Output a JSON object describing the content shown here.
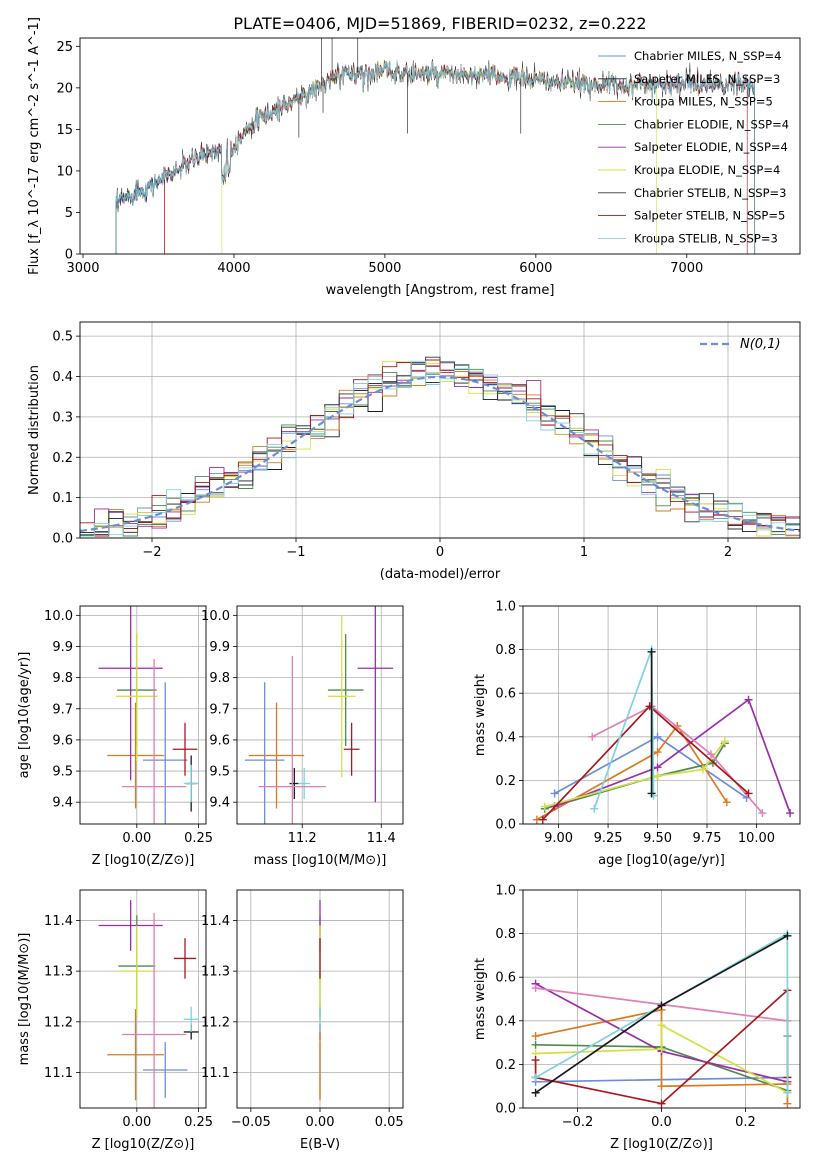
{
  "figure_title": "PLATE=0406, MJD=51869, FIBERID=0232, z=0.222",
  "chart_data": [
    {
      "type": "line",
      "id": "spectrum",
      "title": "PLATE=0406, MJD=51869, FIBERID=0232, z=0.222",
      "xlabel": "wavelength [Angstrom, rest frame]",
      "ylabel": "Flux [f_λ 10^-17 erg cm^-2 s^-1 A^-1]",
      "xlim": [
        2980,
        7750
      ],
      "ylim": [
        0,
        26
      ],
      "xticks": [
        3000,
        4000,
        5000,
        6000,
        7000
      ],
      "yticks": [
        0,
        5,
        10,
        15,
        20,
        25
      ],
      "grid": false,
      "legend_position": "top-right",
      "legend": [
        {
          "name": "Chabrier MILES, N_SSP=4",
          "color": "#6b8fd6"
        },
        {
          "name": "Salpeter MILES, N_SSP=3",
          "color": "#1a1a1a"
        },
        {
          "name": "Kroupa MILES, N_SSP=5",
          "color": "#d97b1e"
        },
        {
          "name": "Chabrier ELODIE, N_SSP=4",
          "color": "#4f8a4f"
        },
        {
          "name": "Salpeter ELODIE, N_SSP=4",
          "color": "#9a2ea8"
        },
        {
          "name": "Kroupa ELODIE, N_SSP=4",
          "color": "#d4e04a"
        },
        {
          "name": "Chabrier STELIB, N_SSP=3",
          "color": "#333333"
        },
        {
          "name": "Salpeter STELIB, N_SSP=5",
          "color": "#a8191e"
        },
        {
          "name": "Kroupa STELIB, N_SSP=3",
          "color": "#7fd3de"
        }
      ],
      "continuum": [
        [
          3220,
          6
        ],
        [
          3300,
          7
        ],
        [
          3400,
          7.8
        ],
        [
          3500,
          8.8
        ],
        [
          3600,
          9.8
        ],
        [
          3700,
          11
        ],
        [
          3800,
          12
        ],
        [
          3900,
          12.5
        ],
        [
          4000,
          13
        ],
        [
          4100,
          15.5
        ],
        [
          4200,
          16.5
        ],
        [
          4300,
          17.5
        ],
        [
          4400,
          18.5
        ],
        [
          4500,
          19.5
        ],
        [
          4600,
          20.5
        ],
        [
          4700,
          21.5
        ],
        [
          4800,
          21.8
        ],
        [
          5000,
          22
        ],
        [
          5200,
          21.8
        ],
        [
          5400,
          21.5
        ],
        [
          5600,
          21.5
        ],
        [
          5800,
          21.3
        ],
        [
          6000,
          21
        ],
        [
          6200,
          20.5
        ],
        [
          6400,
          20.5
        ],
        [
          6600,
          20.3
        ],
        [
          6800,
          20.5
        ],
        [
          7000,
          20.5
        ],
        [
          7200,
          20.3
        ],
        [
          7400,
          20.3
        ],
        [
          7450,
          20.3
        ]
      ]
    },
    {
      "type": "line",
      "id": "residuals",
      "xlabel": "(data-model)/error",
      "ylabel": "Normed distribution",
      "xlim": [
        -2.5,
        2.5
      ],
      "ylim": [
        0,
        0.535
      ],
      "xticks": [
        -2,
        -1,
        0,
        1,
        2
      ],
      "yticks": [
        0.0,
        0.1,
        0.2,
        0.3,
        0.4,
        0.5
      ],
      "grid": true,
      "legend_position": "top-right",
      "legend": [
        {
          "name": "N(0,1)",
          "color": "#6b8fd6"
        }
      ],
      "histogram_bin_width": 0.1
    },
    {
      "type": "scatter",
      "id": "age-vs-Z",
      "xlabel": "Z [log10(Z/Z⊙)]",
      "ylabel": "age [log10(age/yr)]",
      "xlim": [
        -0.23,
        0.28
      ],
      "ylim": [
        9.33,
        10.03
      ],
      "xticks": [
        0.0,
        0.25
      ],
      "yticks": [
        9.4,
        9.5,
        9.6,
        9.7,
        9.8,
        9.9,
        10.0
      ],
      "grid": true,
      "points": [
        {
          "x": 0.115,
          "y": 9.535,
          "xerr": 0.09,
          "yerr": 0.25,
          "color": "#6b8fd6"
        },
        {
          "x": 0.22,
          "y": 9.46,
          "xerr": 0.02,
          "yerr": 0.09,
          "color": "#1a1a1a"
        },
        {
          "x": -0.005,
          "y": 9.55,
          "xerr": 0.115,
          "yerr": 0.17,
          "color": "#d97b1e"
        },
        {
          "x": 0.0,
          "y": 9.76,
          "xerr": 0.08,
          "yerr": 0.18,
          "color": "#4f8a4f"
        },
        {
          "x": -0.025,
          "y": 9.83,
          "xerr": 0.13,
          "yerr": 0.36,
          "color": "#9a2ea8"
        },
        {
          "x": 0.0,
          "y": 9.74,
          "xerr": 0.085,
          "yerr": 0.21,
          "color": "#d4e04a"
        },
        {
          "x": 0.195,
          "y": 9.57,
          "xerr": 0.05,
          "yerr": 0.085,
          "color": "#a8191e"
        },
        {
          "x": 0.22,
          "y": 9.46,
          "xerr": 0.03,
          "yerr": 0.06,
          "color": "#7fd3de"
        },
        {
          "x": 0.07,
          "y": 9.45,
          "xerr": 0.13,
          "yerr": 0.41,
          "color": "#e07fb6"
        }
      ]
    },
    {
      "type": "scatter",
      "id": "age-vs-mass",
      "xlabel": "mass [log10(M/M⊙)]",
      "ylabel": "",
      "xlim": [
        11.035,
        11.455
      ],
      "ylim": [
        9.33,
        10.03
      ],
      "xticks": [
        11.2,
        11.4
      ],
      "yticks": [
        9.4,
        9.5,
        9.6,
        9.7,
        9.8,
        9.9,
        10.0
      ],
      "grid": true,
      "points": [
        {
          "x": 11.105,
          "y": 9.535,
          "xerr": 0.05,
          "yerr": 0.25,
          "color": "#6b8fd6"
        },
        {
          "x": 11.18,
          "y": 9.46,
          "xerr": 0.012,
          "yerr": 0.05,
          "color": "#1a1a1a"
        },
        {
          "x": 11.135,
          "y": 9.55,
          "xerr": 0.07,
          "yerr": 0.17,
          "color": "#d97b1e"
        },
        {
          "x": 11.31,
          "y": 9.76,
          "xerr": 0.045,
          "yerr": 0.18,
          "color": "#4f8a4f"
        },
        {
          "x": 11.385,
          "y": 9.83,
          "xerr": 0.045,
          "yerr": 0.43,
          "color": "#9a2ea8"
        },
        {
          "x": 11.3,
          "y": 9.74,
          "xerr": 0.035,
          "yerr": 0.26,
          "color": "#d4e04a"
        },
        {
          "x": 11.325,
          "y": 9.57,
          "xerr": 0.02,
          "yerr": 0.085,
          "color": "#a8191e"
        },
        {
          "x": 11.205,
          "y": 9.46,
          "xerr": 0.015,
          "yerr": 0.05,
          "color": "#7fd3de"
        },
        {
          "x": 11.175,
          "y": 9.45,
          "xerr": 0.085,
          "yerr": 0.42,
          "color": "#e07fb6"
        }
      ]
    },
    {
      "type": "line",
      "id": "massweight-vs-age",
      "xlabel": "age [log10(age/yr)]",
      "ylabel": "mass weight",
      "xlim": [
        8.82,
        10.22
      ],
      "ylim": [
        0,
        1
      ],
      "xticks": [
        9.0,
        9.25,
        9.5,
        9.75,
        10.0
      ],
      "yticks": [
        0.0,
        0.2,
        0.4,
        0.6,
        0.8,
        1.0
      ],
      "grid": true,
      "series": [
        {
          "color": "#6b8fd6",
          "x": [
            8.98,
            9.5,
            9.95
          ],
          "y": [
            0.14,
            0.4,
            0.12
          ]
        },
        {
          "color": "#4f8a4f",
          "x": [
            8.93,
            9.5,
            9.78,
            9.84
          ],
          "y": [
            0.07,
            0.22,
            0.28,
            0.37
          ]
        },
        {
          "color": "#d97b1e",
          "x": [
            8.89,
            9.5,
            9.6,
            9.85
          ],
          "y": [
            0.02,
            0.33,
            0.45,
            0.1
          ]
        },
        {
          "color": "#9a2ea8",
          "x": [
            8.98,
            9.5,
            9.96,
            10.17
          ],
          "y": [
            0.08,
            0.26,
            0.57,
            0.05
          ]
        },
        {
          "color": "#d4e04a",
          "x": [
            8.93,
            9.5,
            9.73,
            9.84
          ],
          "y": [
            0.08,
            0.22,
            0.25,
            0.38
          ]
        },
        {
          "color": "#e07fb6",
          "x": [
            9.17,
            9.47,
            9.77,
            10.03
          ],
          "y": [
            0.4,
            0.54,
            0.32,
            0.05
          ]
        },
        {
          "color": "#a8191e",
          "x": [
            8.92,
            9.46,
            9.96
          ],
          "y": [
            0.02,
            0.54,
            0.14
          ]
        },
        {
          "color": "#7fd3de",
          "x": [
            9.18,
            9.47,
            9.48
          ],
          "y": [
            0.07,
            0.8,
            0.13
          ]
        },
        {
          "color": "#1a1a1a",
          "x": [
            9.47,
            9.47
          ],
          "y": [
            0.14,
            0.79
          ]
        }
      ]
    },
    {
      "type": "scatter",
      "id": "mass-vs-Z",
      "xlabel": "Z [log10(Z/Z⊙)]",
      "ylabel": "mass [log10(M/M⊙)]",
      "xlim": [
        -0.23,
        0.28
      ],
      "ylim": [
        11.03,
        11.46
      ],
      "xticks": [
        0.0,
        0.25
      ],
      "yticks": [
        11.1,
        11.2,
        11.3,
        11.4
      ],
      "grid": true,
      "points": [
        {
          "x": 0.115,
          "y": 11.105,
          "xerr": 0.09,
          "yerr": 0.055,
          "color": "#6b8fd6"
        },
        {
          "x": 0.22,
          "y": 11.18,
          "xerr": 0.03,
          "yerr": 0.015,
          "color": "#1a1a1a"
        },
        {
          "x": -0.005,
          "y": 11.135,
          "xerr": 0.115,
          "yerr": 0.09,
          "color": "#d97b1e"
        },
        {
          "x": 0.0,
          "y": 11.31,
          "xerr": 0.075,
          "yerr": 0.1,
          "color": "#4f8a4f"
        },
        {
          "x": -0.025,
          "y": 11.39,
          "xerr": 0.13,
          "yerr": 0.05,
          "color": "#9a2ea8"
        },
        {
          "x": 0.0,
          "y": 11.3,
          "xerr": 0.075,
          "yerr": 0.09,
          "color": "#d4e04a"
        },
        {
          "x": 0.195,
          "y": 11.325,
          "xerr": 0.045,
          "yerr": 0.04,
          "color": "#a8191e"
        },
        {
          "x": 0.22,
          "y": 11.205,
          "xerr": 0.03,
          "yerr": 0.025,
          "color": "#7fd3de"
        },
        {
          "x": 0.07,
          "y": 11.175,
          "xerr": 0.13,
          "yerr": 0.24,
          "color": "#e07fb6"
        }
      ]
    },
    {
      "type": "scatter",
      "id": "mass-vs-ebv",
      "xlabel": "E(B-V)",
      "ylabel": "",
      "xlim": [
        -0.06,
        0.06
      ],
      "ylim": [
        11.03,
        11.46
      ],
      "xticks": [
        -0.05,
        0.0,
        0.05
      ],
      "yticks": [
        11.1,
        11.2,
        11.3,
        11.4
      ],
      "grid": true,
      "points": [
        {
          "x": 0.0,
          "y": 11.105,
          "yerr": 0.055,
          "color": "#6b8fd6"
        },
        {
          "x": 0.0,
          "y": 11.18,
          "yerr": 0.015,
          "color": "#1a1a1a"
        },
        {
          "x": 0.0,
          "y": 11.135,
          "yerr": 0.09,
          "color": "#d97b1e"
        },
        {
          "x": 0.0,
          "y": 11.31,
          "yerr": 0.1,
          "color": "#4f8a4f"
        },
        {
          "x": 0.0,
          "y": 11.39,
          "yerr": 0.05,
          "color": "#9a2ea8"
        },
        {
          "x": 0.0,
          "y": 11.3,
          "yerr": 0.09,
          "color": "#d4e04a"
        },
        {
          "x": 0.0,
          "y": 11.325,
          "yerr": 0.04,
          "color": "#a8191e"
        },
        {
          "x": 0.0,
          "y": 11.205,
          "yerr": 0.025,
          "color": "#7fd3de"
        }
      ]
    },
    {
      "type": "line",
      "id": "massweight-vs-Z",
      "xlabel": "Z [log10(Z/Z⊙)]",
      "ylabel": "mass weight",
      "xlim": [
        -0.33,
        0.33
      ],
      "ylim": [
        0,
        1
      ],
      "xticks": [
        -0.2,
        0.0,
        0.2
      ],
      "yticks": [
        0.0,
        0.2,
        0.4,
        0.6,
        0.8,
        1.0
      ],
      "grid": true,
      "series": [
        {
          "color": "#6b8fd6",
          "x": [
            -0.3,
            0.3,
            0.3
          ],
          "y": [
            0.12,
            0.14,
            0.33
          ]
        },
        {
          "color": "#4f8a4f",
          "x": [
            -0.3,
            0.0,
            0.3
          ],
          "y": [
            0.29,
            0.28,
            0.08
          ]
        },
        {
          "color": "#d97b1e",
          "x": [
            -0.3,
            0.0,
            0.0,
            0.3,
            0.3
          ],
          "y": [
            0.33,
            0.45,
            0.1,
            0.11,
            0.02
          ]
        },
        {
          "color": "#9a2ea8",
          "x": [
            -0.3,
            0.0,
            0.3
          ],
          "y": [
            0.57,
            0.26,
            0.12
          ]
        },
        {
          "color": "#d4e04a",
          "x": [
            -0.3,
            0.0,
            0.0,
            0.3
          ],
          "y": [
            0.25,
            0.27,
            0.38,
            0.07
          ]
        },
        {
          "color": "#e07fb6",
          "x": [
            -0.3,
            0.3
          ],
          "y": [
            0.55,
            0.4
          ]
        },
        {
          "color": "#a8191e",
          "x": [
            -0.3,
            -0.3,
            0.0,
            0.3,
            0.3
          ],
          "y": [
            0.22,
            0.14,
            0.02,
            0.54,
            0.14
          ]
        },
        {
          "color": "#7fd3de",
          "x": [
            -0.3,
            0.3,
            0.3
          ],
          "y": [
            0.14,
            0.8,
            0.07
          ]
        },
        {
          "color": "#1a1a1a",
          "x": [
            -0.3,
            0.0,
            0.3
          ],
          "y": [
            0.07,
            0.47,
            0.79
          ]
        }
      ]
    }
  ]
}
